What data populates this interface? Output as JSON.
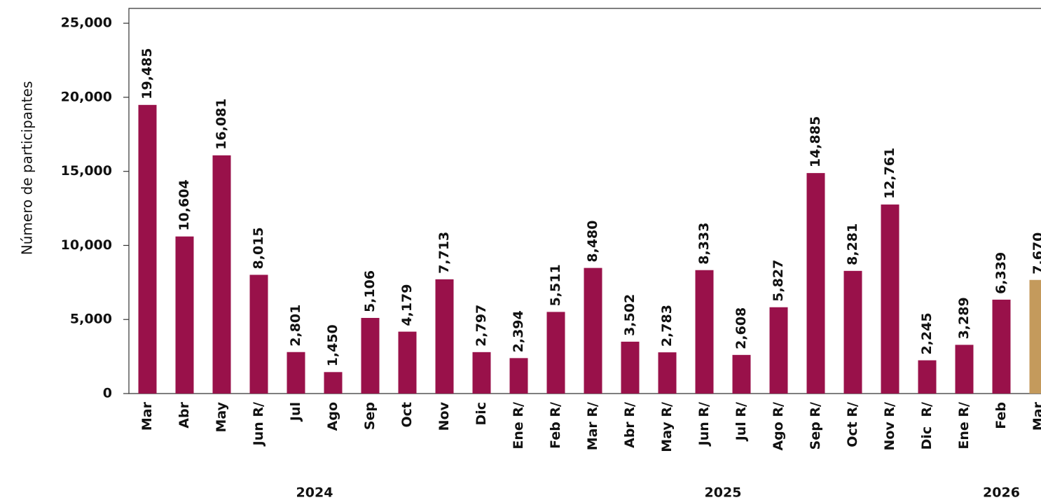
{
  "chart_data": {
    "type": "bar",
    "y_label": "Número de participantes",
    "categories": [
      "Mar",
      "Abr",
      "May",
      "Jun R/",
      "Jul",
      "Ago",
      "Sep",
      "Oct",
      "Nov",
      "Dic",
      "Ene R/",
      "Feb R/",
      "Mar R/",
      "Abr R/",
      "May R/",
      "Jun R/",
      "Jul R/",
      "Ago R/",
      "Sep R/",
      "Oct R/",
      "Nov R/",
      "Dic  R/",
      "Ene R/",
      "Feb",
      "Mar"
    ],
    "values": [
      19485,
      10604,
      16081,
      8015,
      2801,
      1450,
      5106,
      4179,
      7713,
      2797,
      2394,
      5511,
      8480,
      3502,
      2783,
      8333,
      2608,
      5827,
      14885,
      8281,
      12761,
      2245,
      3289,
      6339,
      7670
    ],
    "value_labels": [
      "19,485",
      "10,604",
      "16,081",
      "8,015",
      "2,801",
      "1,450",
      "5,106",
      "4,179",
      "7,713",
      "2,797",
      "2,394",
      "5,511",
      "8,480",
      "3,502",
      "2,783",
      "8,333",
      "2,608",
      "5,827",
      "14,885",
      "8,281",
      "12,761",
      "2,245",
      "3,289",
      "6,339",
      "7,670"
    ],
    "colors": [
      "#99114a",
      "#99114a",
      "#99114a",
      "#99114a",
      "#99114a",
      "#99114a",
      "#99114a",
      "#99114a",
      "#99114a",
      "#99114a",
      "#99114a",
      "#99114a",
      "#99114a",
      "#99114a",
      "#99114a",
      "#99114a",
      "#99114a",
      "#99114a",
      "#99114a",
      "#99114a",
      "#99114a",
      "#99114a",
      "#99114a",
      "#99114a",
      "#c49a5c"
    ],
    "x_groups": [
      {
        "label": "2024",
        "from": 0,
        "to": 9
      },
      {
        "label": "2025",
        "from": 10,
        "to": 21
      },
      {
        "label": "2026",
        "from": 22,
        "to": 24
      }
    ],
    "ylim": [
      0,
      26000
    ],
    "yticks": [
      {
        "value": 0,
        "label": "0"
      },
      {
        "value": 5000,
        "label": "5,000"
      },
      {
        "value": 10000,
        "label": "10,000"
      },
      {
        "value": 15000,
        "label": "15,000"
      },
      {
        "value": 20000,
        "label": "20,000"
      },
      {
        "value": 25000,
        "label": "25,000"
      }
    ],
    "grid": false
  }
}
